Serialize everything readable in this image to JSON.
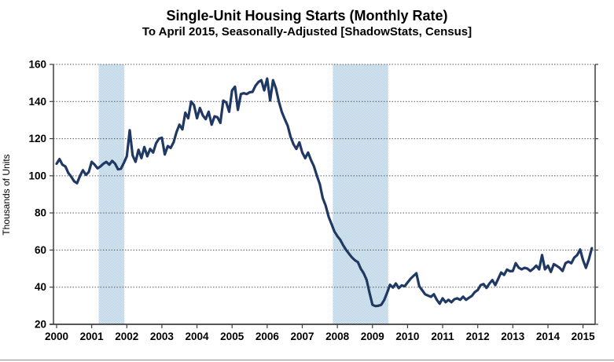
{
  "chart_data": {
    "type": "line",
    "title": "Single-Unit Housing Starts (Monthly Rate)",
    "subtitle": "To April 2015, Seasonally-Adjusted [ShadowStats, Census]",
    "ylabel": "Thousands of Units",
    "ylim": [
      20,
      160
    ],
    "yticks": [
      20,
      40,
      60,
      80,
      100,
      120,
      140,
      160
    ],
    "xticks": [
      2000,
      2001,
      2002,
      2003,
      2004,
      2005,
      2006,
      2007,
      2008,
      2009,
      2010,
      2011,
      2012,
      2013,
      2014,
      2015
    ],
    "grid": "horizontal-dotted",
    "legend": "none",
    "series": [
      {
        "name": "single-unit-housing-starts-monthly-rate",
        "start": "2000-01",
        "end": "2015-04",
        "frequency": "monthly",
        "values": [
          106.5,
          109,
          106,
          105,
          101.5,
          99.5,
          97,
          96,
          100,
          103,
          100.5,
          102,
          107.5,
          106,
          104,
          105,
          106.5,
          107.5,
          106,
          108,
          106.5,
          103.5,
          103.8,
          107,
          110.5,
          124.5,
          111,
          107.5,
          114,
          109.5,
          115.5,
          110.5,
          114.5,
          112.5,
          117.5,
          120,
          120.5,
          111.5,
          116,
          115,
          118,
          123.5,
          127.5,
          125,
          134,
          131,
          140,
          138,
          131,
          136.5,
          132.5,
          130.5,
          134.5,
          127.5,
          132,
          131.5,
          128.5,
          140.5,
          139.5,
          134.5,
          146,
          148,
          135.5,
          144,
          144.5,
          144,
          145,
          145.2,
          148.5,
          150.5,
          151.5,
          146,
          152.4,
          140.6,
          151.5,
          147,
          140,
          134.5,
          130.5,
          127,
          121,
          117,
          114.5,
          118,
          112.5,
          109.5,
          112.5,
          108.5,
          105,
          100,
          95.5,
          88,
          84,
          78,
          74,
          70,
          67.5,
          65.5,
          62.5,
          60,
          58,
          56,
          54.5,
          53.5,
          50,
          47.5,
          44,
          37,
          30.5,
          29.8,
          30,
          30.5,
          33,
          37,
          41.3,
          39.8,
          42,
          39.5,
          41,
          40.5,
          42.5,
          44.5,
          46,
          47.5,
          40.5,
          38.4,
          36.2,
          35.5,
          34.8,
          36.2,
          33.2,
          31.1,
          34,
          31.9,
          33.2,
          31.9,
          33.5,
          34,
          33.2,
          34.9,
          33.2,
          34.3,
          35.3,
          37.4,
          38.5,
          41.1,
          41.7,
          39.6,
          42,
          43.8,
          41.1,
          44.5,
          47.9,
          46.6,
          49.5,
          48.6,
          48.7,
          52.9,
          50.5,
          49.6,
          50.4,
          50,
          48.7,
          50,
          51.6,
          49.6,
          57.3,
          49.6,
          51.6,
          48.2,
          52.4,
          51.5,
          50.4,
          48.7,
          52.9,
          53.8,
          52.9,
          55.9,
          57.3,
          60.3,
          54.6,
          50.4,
          55,
          61
        ]
      }
    ],
    "recession_bands": [
      {
        "from": 2001.2,
        "to": 2001.93
      },
      {
        "from": 2007.87,
        "to": 2009.45
      }
    ],
    "colors": {
      "line": "#1f3864",
      "band_dark": "#aecbe8",
      "band_light": "#e6f0fa",
      "grid": "#5a5a5a",
      "axis": "#3f3f3f",
      "text": "#000000",
      "background": "#ffffff"
    }
  }
}
